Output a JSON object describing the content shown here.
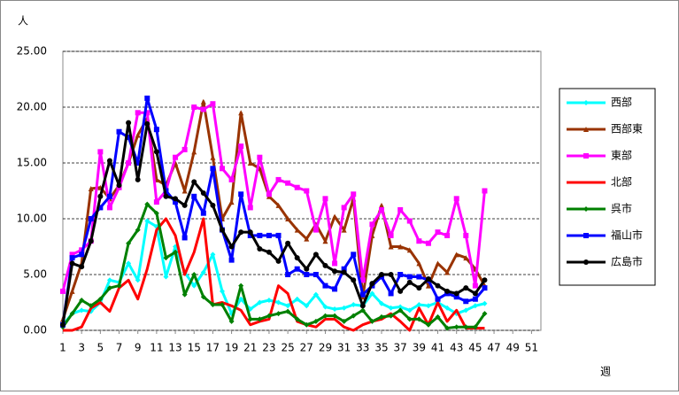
{
  "chart_data": {
    "type": "line",
    "y_label": "人",
    "x_label": "週",
    "x": [
      1,
      2,
      3,
      4,
      5,
      6,
      7,
      8,
      9,
      10,
      11,
      12,
      13,
      14,
      15,
      16,
      17,
      18,
      19,
      20,
      21,
      22,
      23,
      24,
      25,
      26,
      27,
      28,
      29,
      30,
      31,
      32,
      33,
      34,
      35,
      36,
      37,
      38,
      39,
      40,
      41,
      42,
      43,
      44,
      45,
      46
    ],
    "xlim": [
      1,
      52
    ],
    "xticks": [
      1,
      3,
      5,
      7,
      9,
      11,
      13,
      15,
      17,
      19,
      21,
      23,
      25,
      27,
      29,
      31,
      33,
      35,
      37,
      39,
      41,
      43,
      45,
      47,
      49,
      51
    ],
    "ylim": [
      0,
      25
    ],
    "yticks": [
      {
        "value": 0,
        "label": "0.00"
      },
      {
        "value": 5,
        "label": "5.00"
      },
      {
        "value": 10,
        "label": "10.00"
      },
      {
        "value": 15,
        "label": "15.00"
      },
      {
        "value": 20,
        "label": "20.00"
      },
      {
        "value": 25,
        "label": "25.00"
      }
    ],
    "grid": true,
    "legend": "right",
    "series": [
      {
        "name": "西部",
        "color": "#00ffff",
        "marker": "diamond",
        "values": [
          0.5,
          1.5,
          1.8,
          1.7,
          2.5,
          4.5,
          4.3,
          6,
          4.5,
          9.8,
          9.3,
          4.8,
          7.5,
          5.2,
          4,
          5.2,
          6.8,
          3.5,
          1.5,
          2.8,
          1.9,
          2.5,
          2.7,
          2.5,
          2.2,
          2.8,
          2.2,
          3.2,
          2.1,
          1.9,
          2,
          2.3,
          2.2,
          3.3,
          2.4,
          2,
          2.1,
          1.8,
          2.3,
          2.2,
          2.5,
          2,
          1.5,
          1.8,
          2.2,
          2.4
        ]
      },
      {
        "name": "西部東",
        "color": "#993300",
        "marker": "triangle",
        "values": [
          1,
          3.5,
          6,
          12.7,
          12.8,
          11.8,
          13,
          15,
          17.5,
          19,
          13.5,
          13,
          15,
          12.5,
          16,
          20.5,
          15.5,
          10,
          11.5,
          19.5,
          15,
          14.5,
          12,
          11.2,
          10,
          9,
          8.2,
          9.5,
          8,
          10.2,
          9,
          11.8,
          3,
          8.5,
          11.2,
          7.5,
          7.5,
          7.2,
          6,
          4,
          6,
          5.2,
          6.8,
          6.5,
          5.5,
          4
        ]
      },
      {
        "name": "東部",
        "color": "#ff00ff",
        "marker": "square",
        "values": [
          3.5,
          6.8,
          7.2,
          8,
          16,
          11,
          12.8,
          15,
          19.5,
          19.5,
          11.5,
          12.5,
          15.5,
          16.2,
          20,
          19.8,
          20.3,
          14.5,
          13.5,
          16.5,
          11,
          15.5,
          12.2,
          13.5,
          13.2,
          12.8,
          12.5,
          9,
          11.8,
          6,
          11,
          12.2,
          4.5,
          9.5,
          10.8,
          8.5,
          10.8,
          9.8,
          8,
          7.8,
          8.8,
          8.5,
          11.8,
          8.5,
          4,
          12.5
        ]
      },
      {
        "name": "北部",
        "color": "#ff0000",
        "marker": "none",
        "values": [
          0,
          0,
          0.3,
          2,
          2.5,
          1.7,
          3.8,
          4.5,
          2.8,
          5.5,
          9,
          10,
          8.5,
          5,
          7,
          10,
          2.3,
          2.5,
          2.2,
          1.8,
          0.5,
          0.8,
          1,
          4,
          3.3,
          0.8,
          0.5,
          0.3,
          1,
          1,
          0.3,
          0,
          0.5,
          0.8,
          1,
          1.5,
          0.8,
          0,
          2,
          0.5,
          2.5,
          0.8,
          1.8,
          0.2,
          0.2,
          0.2
        ]
      },
      {
        "name": "呉市",
        "color": "#008000",
        "marker": "diamond",
        "values": [
          0.3,
          1.5,
          2.7,
          2.2,
          2.8,
          3.8,
          4,
          7.8,
          9,
          11.3,
          10.5,
          6.5,
          7,
          3.2,
          5,
          3,
          2.3,
          2.3,
          0.8,
          4,
          1,
          1,
          1.3,
          1.5,
          1.7,
          1,
          0.5,
          0.8,
          1.3,
          1.3,
          0.8,
          1.3,
          1.8,
          0.8,
          1.2,
          1.3,
          1.8,
          1,
          1,
          0.5,
          1.2,
          0.2,
          0.3,
          0.3,
          0.3,
          1.5
        ]
      },
      {
        "name": "福山市",
        "color": "#0000ff",
        "marker": "square",
        "values": [
          0.5,
          6.5,
          6.8,
          10,
          11,
          12,
          17.8,
          17.3,
          15,
          20.8,
          18,
          12.5,
          11.5,
          8.3,
          12,
          10.5,
          14.5,
          9,
          6.3,
          12.2,
          8.5,
          8.5,
          8.5,
          8.5,
          5,
          5.5,
          5,
          5,
          4,
          3.7,
          5.5,
          6.8,
          3.2,
          4,
          4.8,
          3.3,
          5,
          4.8,
          4.8,
          4.5,
          2.8,
          3.3,
          3,
          2.6,
          2.8,
          3.8
        ]
      },
      {
        "name": "広島市",
        "color": "#000000",
        "marker": "circle",
        "values": [
          0.5,
          6,
          5.7,
          8,
          12,
          15.2,
          13,
          18.6,
          13.5,
          18.5,
          16,
          12,
          11.8,
          11.2,
          13.3,
          12.3,
          11.2,
          9,
          7.5,
          8.8,
          8.8,
          7.3,
          7,
          6.2,
          7.8,
          6.5,
          5.5,
          6.8,
          5.8,
          5.3,
          5.2,
          4.5,
          2.2,
          4.2,
          5,
          5,
          3.5,
          4.3,
          3.8,
          4.6,
          4,
          3.5,
          3.3,
          3.8,
          3.3,
          4.5
        ]
      }
    ]
  }
}
